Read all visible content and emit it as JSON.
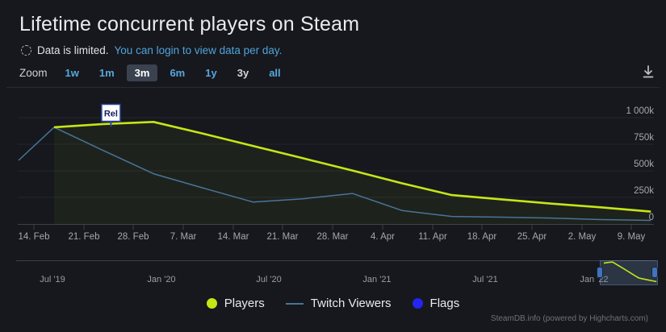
{
  "header": {
    "title": "Lifetime concurrent players on Steam",
    "notice": "Data is limited.",
    "login_link": "You can login to view data per day.",
    "zoom_label": "Zoom",
    "zoom_buttons": [
      "1w",
      "1m",
      "3m",
      "6m",
      "1y",
      "3y",
      "all"
    ],
    "zoom_selected": "3m",
    "zoom_disabled": "3y"
  },
  "chart": {
    "y_ticks": [
      "1 000k",
      "750k",
      "500k",
      "250k",
      "0"
    ],
    "x_ticks": [
      "14. Feb",
      "21. Feb",
      "28. Feb",
      "7. Mar",
      "14. Mar",
      "21. Mar",
      "28. Mar",
      "4. Apr",
      "11. Apr",
      "18. Apr",
      "25. Apr",
      "2. May",
      "9. May"
    ]
  },
  "chart_data": {
    "type": "line",
    "title": "Lifetime concurrent players on Steam",
    "x_axis": {
      "type": "datetime",
      "start": "2022-02-12",
      "end": "2022-05-13",
      "tick_labels": [
        "14. Feb",
        "21. Feb",
        "28. Feb",
        "7. Mar",
        "14. Mar",
        "21. Mar",
        "28. Mar",
        "4. Apr",
        "11. Apr",
        "18. Apr",
        "25. Apr",
        "2. May",
        "9. May"
      ]
    },
    "y_axis": {
      "min": 0,
      "max": 1000000,
      "tick_labels": [
        "0",
        "250k",
        "500k",
        "750k",
        "1 000k"
      ],
      "position": "right"
    },
    "grid": true,
    "legend_position": "bottom",
    "series": [
      {
        "name": "Players",
        "type": "area",
        "color": "#c5e617",
        "points": [
          [
            "2022-02-17",
            910000
          ],
          [
            "2022-02-24",
            940000
          ],
          [
            "2022-03-03",
            960000
          ],
          [
            "2022-03-10",
            850000
          ],
          [
            "2022-03-17",
            735000
          ],
          [
            "2022-03-24",
            620000
          ],
          [
            "2022-03-31",
            505000
          ],
          [
            "2022-04-07",
            385000
          ],
          [
            "2022-04-14",
            275000
          ],
          [
            "2022-04-21",
            235000
          ],
          [
            "2022-04-28",
            195000
          ],
          [
            "2022-05-05",
            160000
          ],
          [
            "2022-05-12",
            120000
          ]
        ]
      },
      {
        "name": "Twitch Viewers",
        "type": "line",
        "color": "#47759b",
        "points": [
          [
            "2022-02-12",
            600000
          ],
          [
            "2022-02-17",
            910000
          ],
          [
            "2022-02-24",
            690000
          ],
          [
            "2022-03-03",
            475000
          ],
          [
            "2022-03-10",
            340000
          ],
          [
            "2022-03-17",
            210000
          ],
          [
            "2022-03-24",
            240000
          ],
          [
            "2022-03-31",
            290000
          ],
          [
            "2022-04-07",
            130000
          ],
          [
            "2022-04-14",
            75000
          ],
          [
            "2022-04-21",
            68000
          ],
          [
            "2022-04-28",
            60000
          ],
          [
            "2022-05-05",
            45000
          ],
          [
            "2022-05-12",
            38000
          ]
        ]
      },
      {
        "name": "Flags",
        "type": "flags",
        "color": "#2525f0",
        "points": [
          [
            "2022-02-25",
            "Rel"
          ]
        ]
      }
    ],
    "navigator": {
      "labels": [
        "Jul '19",
        "Jan '20",
        "Jul '20",
        "Jan '21",
        "Jul '21",
        "Jan '22"
      ],
      "selected_range": "2022-02-12 to 2022-05-13"
    }
  },
  "flag": {
    "label": "Rel"
  },
  "navigator": {
    "labels": [
      "Jul '19",
      "Jan '20",
      "Jul '20",
      "Jan '21",
      "Jul '21",
      "Jan '22"
    ]
  },
  "legend": {
    "players": "Players",
    "twitch": "Twitch Viewers",
    "flags": "Flags"
  },
  "footer": {
    "credit": "SteamDB.info (powered by Highcharts.com)"
  },
  "colors": {
    "background": "#16181d",
    "players": "#c5e617",
    "players_fill": "rgba(197,230,23,0.05)",
    "twitch": "#47759b",
    "flags": "#2525f0",
    "link": "#4fa3dc",
    "gridline": "#23262d",
    "axis": "#3b3f47"
  }
}
